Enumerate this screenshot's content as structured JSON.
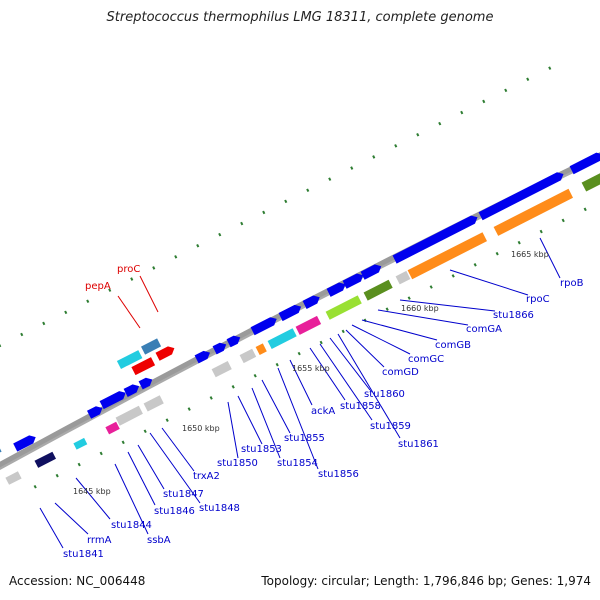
{
  "header": {
    "title": "Streptococcus thermophilus LMG 18311, complete genome"
  },
  "footer": {
    "accession": "Accession: NC_006448",
    "summary": "Topology: circular; Length: 1,796,846 bp; Genes: 1,974"
  },
  "map": {
    "backbone_color": "#8c8c8c",
    "tick_color": "#2e7d32",
    "scale_labels": [
      "1645 kbp",
      "1650 kbp",
      "1655 kbp",
      "1660 kbp",
      "1665 kbp"
    ],
    "gene_labels": [
      "stu1841",
      "rrmA",
      "stu1844",
      "ssbA",
      "stu1846",
      "stu1847",
      "stu1848",
      "trxA2",
      "stu1850",
      "stu1853",
      "stu1854",
      "stu1855",
      "stu1856",
      "ackA",
      "stu1858",
      "stu1859",
      "stu1860",
      "stu1861",
      "comGD",
      "comGC",
      "comGB",
      "comGA",
      "stu1866",
      "rpoC",
      "rpoB"
    ],
    "highlight_labels": [
      "pepA",
      "proC"
    ],
    "gene_label_color": "#0000cc",
    "highlight_label_color": "#dd0000"
  }
}
